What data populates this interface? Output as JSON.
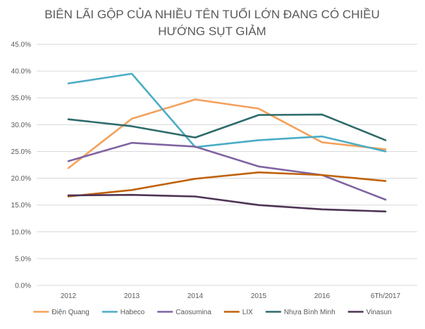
{
  "chart_data": {
    "type": "line",
    "title_lines": [
      "BIÊN LÃI GỘP CỦA NHIỀU TÊN TUỔI LỚN ĐANG CÓ CHIỀU",
      "HƯỚNG SỤT GIẢM"
    ],
    "x": [
      "2012",
      "2013",
      "2014",
      "2015",
      "2016",
      "6Th/2017"
    ],
    "ylim": [
      0,
      45
    ],
    "y_ticks": [
      "0.0%",
      "5.0%",
      "10.0%",
      "15.0%",
      "20.0%",
      "25.0%",
      "30.0%",
      "35.0%",
      "40.0%",
      "45.0%"
    ],
    "grid": true,
    "legend_position": "bottom",
    "series": [
      {
        "name": "Điện Quang",
        "color": "#f4a05a",
        "values": [
          21.9,
          31.1,
          34.7,
          33.0,
          26.7,
          25.4
        ]
      },
      {
        "name": "Habeco",
        "color": "#4bacc6",
        "values": [
          37.7,
          39.5,
          25.8,
          27.1,
          27.8,
          25.0
        ]
      },
      {
        "name": "Caosumina",
        "color": "#8064a2",
        "values": [
          23.2,
          26.6,
          25.9,
          22.2,
          20.6,
          16.0
        ]
      },
      {
        "name": "LIX",
        "color": "#c0620c",
        "values": [
          16.6,
          17.8,
          19.9,
          21.1,
          20.6,
          19.5
        ]
      },
      {
        "name": "Nhựa Bình Minh",
        "color": "#2e6b6b",
        "values": [
          31.0,
          29.7,
          27.6,
          31.8,
          31.9,
          27.1
        ]
      },
      {
        "name": "Vinasun",
        "color": "#4e3454",
        "values": [
          16.8,
          16.9,
          16.6,
          15.0,
          14.2,
          13.8
        ]
      }
    ]
  }
}
